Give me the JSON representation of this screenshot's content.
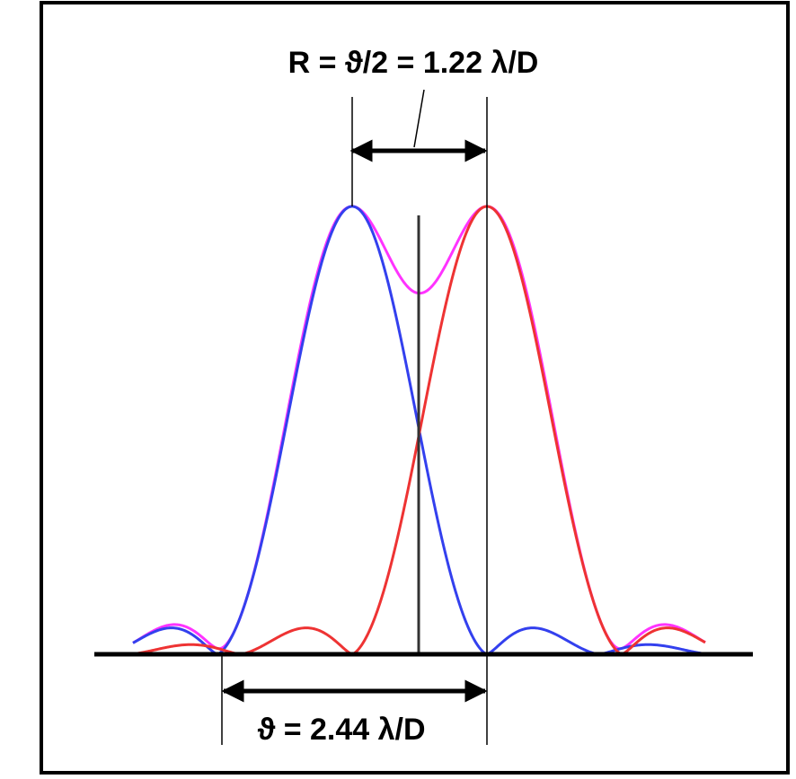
{
  "labels": {
    "separation": "R = ϑ/2 = 1.22 λ/D",
    "width": "ϑ = 2.44 λ/D"
  }
}
